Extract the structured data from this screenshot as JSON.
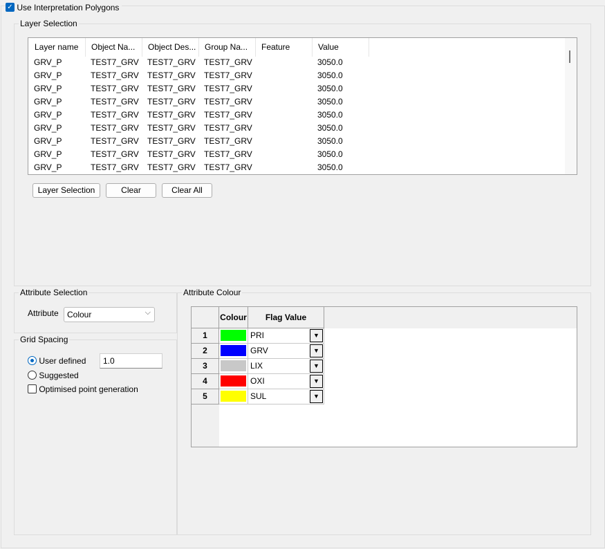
{
  "use_polygons": {
    "label": "Use Interpretation Polygons",
    "checked": true
  },
  "layer_selection": {
    "title": "Layer Selection",
    "columns": [
      "Layer name",
      "Object Na...",
      "Object Des...",
      "Group Na...",
      "Feature",
      "Value"
    ],
    "rows": [
      [
        "GRV_P",
        "TEST7_GRV",
        "TEST7_GRV",
        "TEST7_GRV",
        "",
        "3050.0"
      ],
      [
        "GRV_P",
        "TEST7_GRV",
        "TEST7_GRV",
        "TEST7_GRV",
        "",
        "3050.0"
      ],
      [
        "GRV_P",
        "TEST7_GRV",
        "TEST7_GRV",
        "TEST7_GRV",
        "",
        "3050.0"
      ],
      [
        "GRV_P",
        "TEST7_GRV",
        "TEST7_GRV",
        "TEST7_GRV",
        "",
        "3050.0"
      ],
      [
        "GRV_P",
        "TEST7_GRV",
        "TEST7_GRV",
        "TEST7_GRV",
        "",
        "3050.0"
      ],
      [
        "GRV_P",
        "TEST7_GRV",
        "TEST7_GRV",
        "TEST7_GRV",
        "",
        "3050.0"
      ],
      [
        "GRV_P",
        "TEST7_GRV",
        "TEST7_GRV",
        "TEST7_GRV",
        "",
        "3050.0"
      ],
      [
        "GRV_P",
        "TEST7_GRV",
        "TEST7_GRV",
        "TEST7_GRV",
        "",
        "3050.0"
      ],
      [
        "GRV_P",
        "TEST7_GRV",
        "TEST7_GRV",
        "TEST7_GRV",
        "",
        "3050.0"
      ]
    ],
    "buttons": {
      "layer_selection": "Layer Selection",
      "clear": "Clear",
      "clear_all": "Clear All"
    }
  },
  "attribute_selection": {
    "title": "Attribute Selection",
    "label": "Attribute",
    "value": "Colour"
  },
  "grid_spacing": {
    "title": "Grid Spacing",
    "user_defined": "User defined",
    "user_defined_value": "1.0",
    "suggested": "Suggested",
    "optimised": "Optimised point generation",
    "selected": "user_defined",
    "optimised_checked": false
  },
  "attribute_colour": {
    "title": "Attribute Colour",
    "columns": [
      "Colour",
      "Flag Value"
    ],
    "rows": [
      {
        "num": "1",
        "color": "#00ff00",
        "flag": "PRI"
      },
      {
        "num": "2",
        "color": "#0000ff",
        "flag": "GRV"
      },
      {
        "num": "3",
        "color": "#c8c8c8",
        "flag": "LIX"
      },
      {
        "num": "4",
        "color": "#ff0000",
        "flag": "OXI"
      },
      {
        "num": "5",
        "color": "#ffff00",
        "flag": "SUL"
      }
    ]
  }
}
